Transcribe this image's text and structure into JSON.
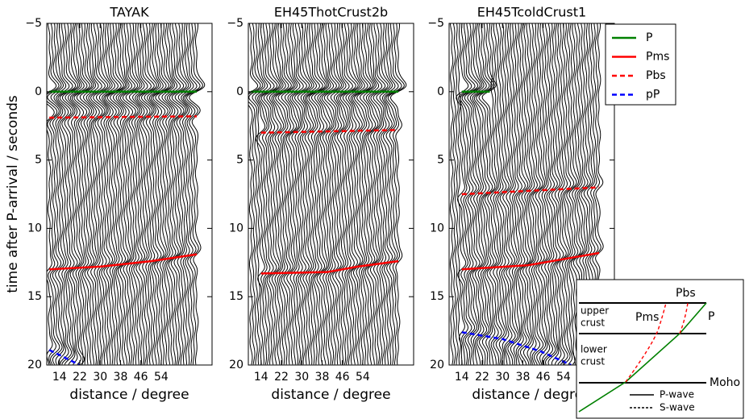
{
  "chart_data": [
    {
      "type": "record-section",
      "title": "TAYAK",
      "xlabel": "distance / degree",
      "ylabel": "time after P-arrival / seconds",
      "xlim": [
        9,
        74
      ],
      "ylim": [
        -5,
        20
      ],
      "y_inverted": true,
      "xticks": [
        14,
        22,
        30,
        38,
        46,
        54
      ],
      "yticks": [
        {
          "value": -5,
          "label": "−5"
        },
        0,
        5,
        10,
        15,
        20
      ],
      "trace_x": [
        10,
        11,
        12,
        13,
        14,
        15,
        16,
        17,
        18,
        19,
        20,
        21,
        22,
        23,
        24,
        25,
        26,
        27,
        28,
        29,
        30,
        31,
        32,
        33,
        34,
        35,
        36,
        37,
        38,
        39,
        40,
        41,
        42,
        43,
        44,
        45,
        46,
        47,
        48,
        49,
        50,
        51,
        52,
        53,
        54,
        55,
        56,
        57,
        58,
        59,
        60,
        61,
        62,
        63,
        64,
        65,
        66,
        67,
        68
      ],
      "series": [
        {
          "name": "P",
          "color": "#008000",
          "dash": false,
          "x": [
            10,
            68
          ],
          "values": [
            0,
            0
          ]
        },
        {
          "name": "Pms",
          "color": "#ff0000",
          "dash": false,
          "x": [
            10,
            30,
            50,
            68
          ],
          "values": [
            13.0,
            12.8,
            12.4,
            11.9
          ]
        },
        {
          "name": "Pbs",
          "color": "#ff0000",
          "dash": true,
          "x": [
            10,
            68
          ],
          "values": [
            1.9,
            1.8
          ]
        },
        {
          "name": "pP",
          "color": "#0000ff",
          "dash": true,
          "x": [
            10,
            22
          ],
          "values": [
            18.9,
            20
          ]
        }
      ]
    },
    {
      "type": "record-section",
      "title": "EH45ThotCrust2b",
      "xlabel": "distance / degree",
      "xlim": [
        9,
        74
      ],
      "ylim": [
        -5,
        20
      ],
      "y_inverted": true,
      "xticks": [
        14,
        22,
        30,
        38,
        46,
        54
      ],
      "yticks": [
        {
          "value": -5,
          "label": "−5"
        },
        0,
        5,
        10,
        15,
        20
      ],
      "trace_x": [
        10,
        11,
        12,
        13,
        14,
        15,
        16,
        17,
        18,
        19,
        20,
        21,
        22,
        23,
        24,
        25,
        26,
        27,
        28,
        29,
        30,
        31,
        32,
        33,
        34,
        35,
        36,
        37,
        38,
        39,
        40,
        41,
        42,
        43,
        44,
        45,
        46,
        47,
        48,
        49,
        50,
        51,
        52,
        53,
        54,
        55,
        56,
        57,
        58,
        59,
        60,
        61,
        62,
        63,
        64,
        65,
        66,
        67,
        68
      ],
      "series": [
        {
          "name": "P",
          "color": "#008000",
          "dash": false,
          "x": [
            10,
            68
          ],
          "values": [
            0,
            0
          ]
        },
        {
          "name": "Pms",
          "color": "#ff0000",
          "dash": false,
          "x": [
            14,
            40,
            52,
            68
          ],
          "values": [
            13.3,
            13.2,
            12.8,
            12.4
          ]
        },
        {
          "name": "Pbs",
          "color": "#ff0000",
          "dash": true,
          "x": [
            14,
            68
          ],
          "values": [
            3.0,
            2.8
          ]
        }
      ]
    },
    {
      "type": "record-section",
      "title": "EH45TcoldCrust1",
      "xlabel": "distance / degree",
      "xlim": [
        9,
        74
      ],
      "ylim": [
        -5,
        20
      ],
      "y_inverted": true,
      "xticks": [
        14,
        22,
        30,
        38,
        46,
        54
      ],
      "yticks": [
        {
          "value": -5,
          "label": "−5"
        },
        0,
        5,
        10,
        15,
        20
      ],
      "legend": "outside-upper-right",
      "trace_x": [
        10,
        11,
        12,
        13,
        14,
        15,
        16,
        17,
        18,
        19,
        20,
        21,
        22,
        23,
        24,
        25,
        26,
        27,
        28,
        29,
        30,
        31,
        32,
        33,
        34,
        35,
        36,
        37,
        38,
        39,
        40,
        41,
        42,
        43,
        44,
        45,
        46,
        47,
        48,
        49,
        50,
        51,
        52,
        53,
        54,
        55,
        56,
        57,
        58,
        59,
        60,
        61,
        62,
        63,
        64,
        65,
        66,
        67,
        68
      ],
      "series": [
        {
          "name": "P",
          "color": "#008000",
          "dash": false,
          "x": [
            14,
            25
          ],
          "values": [
            0,
            0
          ]
        },
        {
          "name": "Pms",
          "color": "#ff0000",
          "dash": false,
          "x": [
            14,
            40,
            68
          ],
          "values": [
            13.0,
            12.7,
            11.8
          ]
        },
        {
          "name": "Pbs",
          "color": "#ff0000",
          "dash": true,
          "x": [
            14,
            68
          ],
          "values": [
            7.5,
            7.0
          ]
        },
        {
          "name": "pP",
          "color": "#0000ff",
          "dash": true,
          "x": [
            14,
            30,
            45,
            57
          ],
          "values": [
            17.6,
            18.1,
            19.0,
            20.0
          ]
        }
      ]
    }
  ],
  "inset": {
    "pbs": "Pbs",
    "pms": "Pms",
    "p": "P",
    "upper_crust": [
      "upper",
      "crust"
    ],
    "lower_crust": [
      "lower",
      "crust"
    ],
    "moho": "Moho",
    "p_wave": "P-wave",
    "s_wave": "S-wave"
  }
}
